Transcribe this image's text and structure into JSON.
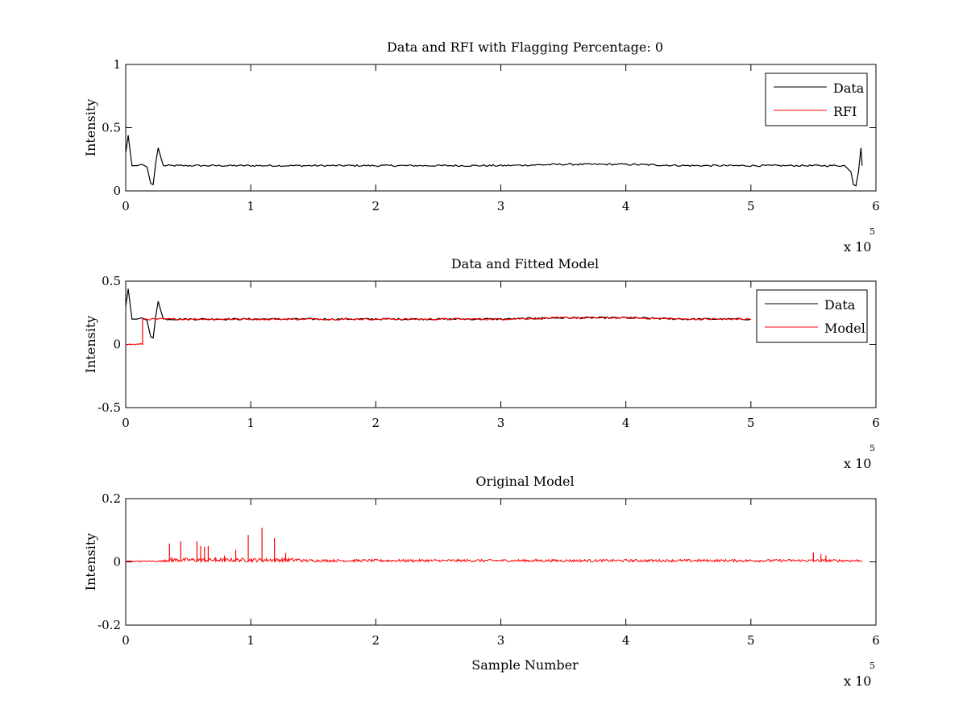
{
  "chart_data": [
    {
      "type": "line",
      "title": "Data and RFI with Flagging Percentage: 0",
      "xlabel": "",
      "ylabel": "Intensity",
      "xlim": [
        0,
        600000
      ],
      "ylim": [
        0,
        1
      ],
      "xticks": [
        0,
        100000,
        200000,
        300000,
        400000,
        500000,
        600000
      ],
      "xtick_labels": [
        "0",
        "1",
        "2",
        "3",
        "4",
        "5",
        "6"
      ],
      "yticks": [
        0,
        0.5,
        1
      ],
      "ytick_labels": [
        "0",
        "0.5",
        "1"
      ],
      "x_multiplier": "x 10",
      "x_multiplier_exp": "5",
      "legend_position": "top-right",
      "grid": false,
      "series": [
        {
          "name": "Data",
          "color": "#000000",
          "x": [
            0,
            2000,
            5000,
            9000,
            13000,
            17000,
            20000,
            22000,
            24000,
            26000,
            30000,
            60000,
            100000,
            150000,
            200000,
            250000,
            300000,
            350000,
            400000,
            450000,
            500000,
            550000,
            575000,
            580000,
            582000,
            584000,
            586000,
            588000,
            589000
          ],
          "y": [
            0.3,
            0.44,
            0.2,
            0.2,
            0.21,
            0.19,
            0.06,
            0.05,
            0.22,
            0.34,
            0.2,
            0.2,
            0.2,
            0.2,
            0.2,
            0.2,
            0.2,
            0.21,
            0.21,
            0.2,
            0.2,
            0.2,
            0.2,
            0.15,
            0.05,
            0.04,
            0.15,
            0.34,
            0.2
          ]
        },
        {
          "name": "RFI",
          "color": "#ff0000",
          "x": [],
          "y": []
        }
      ]
    },
    {
      "type": "line",
      "title": "Data and Fitted Model",
      "xlabel": "",
      "ylabel": "Intensity",
      "xlim": [
        0,
        600000
      ],
      "ylim": [
        -0.5,
        0.5
      ],
      "xticks": [
        0,
        100000,
        200000,
        300000,
        400000,
        500000,
        600000
      ],
      "xtick_labels": [
        "0",
        "1",
        "2",
        "3",
        "4",
        "5",
        "6"
      ],
      "yticks": [
        -0.5,
        0,
        0.5
      ],
      "ytick_labels": [
        "-0.5",
        "0",
        "0.5"
      ],
      "x_multiplier": "x 10",
      "x_multiplier_exp": "5",
      "legend_position": "top-right",
      "grid": false,
      "series": [
        {
          "name": "Data",
          "color": "#000000",
          "x": [
            0,
            2000,
            5000,
            9000,
            13000,
            17000,
            20000,
            22000,
            24000,
            26000,
            30000,
            60000,
            100000,
            150000,
            200000,
            250000,
            300000,
            350000,
            400000,
            450000,
            500000
          ],
          "y": [
            0.3,
            0.44,
            0.2,
            0.2,
            0.21,
            0.19,
            0.06,
            0.05,
            0.22,
            0.34,
            0.2,
            0.2,
            0.2,
            0.2,
            0.2,
            0.2,
            0.2,
            0.21,
            0.21,
            0.2,
            0.2
          ]
        },
        {
          "name": "Model",
          "color": "#ff0000",
          "x": [
            0,
            13500,
            13500,
            30000,
            60000,
            100000,
            150000,
            200000,
            250000,
            300000,
            350000,
            400000,
            450000,
            500000
          ],
          "y": [
            0,
            0,
            0.2,
            0.2,
            0.2,
            0.2,
            0.2,
            0.2,
            0.2,
            0.2,
            0.21,
            0.21,
            0.2,
            0.2
          ]
        }
      ]
    },
    {
      "type": "line",
      "title": "Original Model",
      "xlabel": "Sample Number",
      "ylabel": "Intensity",
      "xlim": [
        0,
        600000
      ],
      "ylim": [
        -0.2,
        0.2
      ],
      "xticks": [
        0,
        100000,
        200000,
        300000,
        400000,
        500000,
        600000
      ],
      "xtick_labels": [
        "0",
        "1",
        "2",
        "3",
        "4",
        "5",
        "6"
      ],
      "yticks": [
        -0.2,
        0,
        0.2
      ],
      "ytick_labels": [
        "-0.2",
        "0",
        "0.2"
      ],
      "x_multiplier": "x 10",
      "x_multiplier_exp": "5",
      "grid": false,
      "series": [
        {
          "color": "#ff0000",
          "baseline": 0,
          "x_range": [
            0,
            589000
          ],
          "spikes": [
            {
              "x": 35000,
              "y": 0.058
            },
            {
              "x": 37000,
              "y": 0.015
            },
            {
              "x": 44000,
              "y": 0.065
            },
            {
              "x": 57000,
              "y": 0.065
            },
            {
              "x": 60000,
              "y": 0.05
            },
            {
              "x": 63000,
              "y": 0.048
            },
            {
              "x": 66000,
              "y": 0.05
            },
            {
              "x": 72000,
              "y": 0.015
            },
            {
              "x": 79000,
              "y": 0.02
            },
            {
              "x": 88000,
              "y": 0.038
            },
            {
              "x": 98000,
              "y": 0.085
            },
            {
              "x": 109000,
              "y": 0.108
            },
            {
              "x": 119000,
              "y": 0.075
            },
            {
              "x": 128000,
              "y": 0.028
            },
            {
              "x": 550000,
              "y": 0.03
            },
            {
              "x": 556000,
              "y": 0.025
            },
            {
              "x": 560000,
              "y": 0.02
            }
          ]
        }
      ]
    }
  ]
}
